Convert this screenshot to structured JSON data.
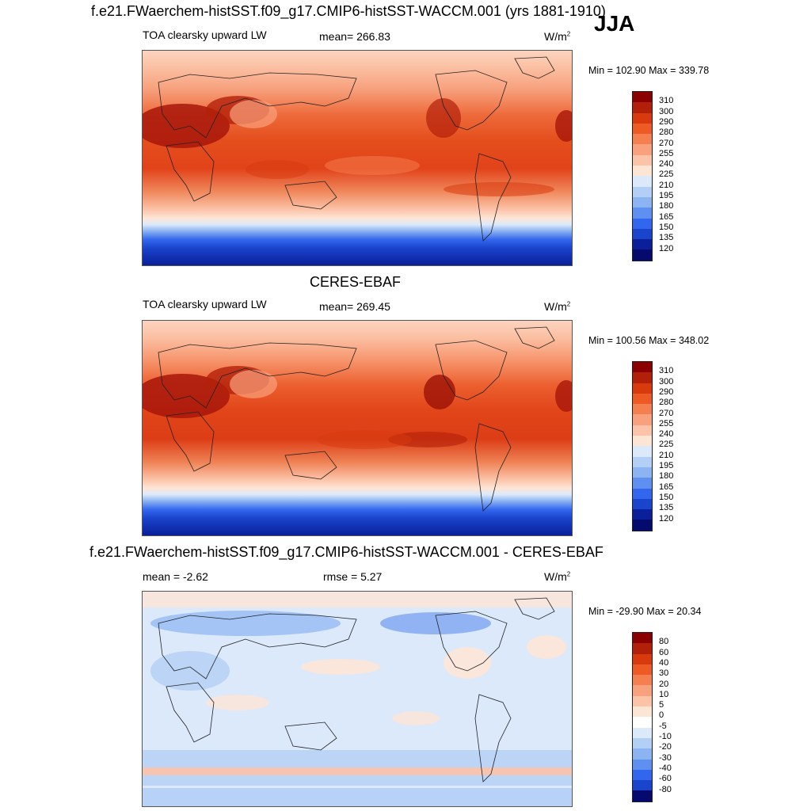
{
  "season": "JJA",
  "panels": [
    {
      "title": "f.e21.FWaerchem-histSST.f09_g17.CMIP6-histSST-WACCM.001 (yrs 1881-1910)",
      "left": "TOA clearsky upward LW",
      "center": "mean= 266.83",
      "units": "W/m",
      "units_sup": "2",
      "minmax": "Min = 102.90 Max = 339.78",
      "levels": [
        "310",
        "300",
        "290",
        "280",
        "270",
        "255",
        "240",
        "225",
        "210",
        "195",
        "180",
        "165",
        "150",
        "135",
        "120"
      ],
      "colors": [
        "#8b0000",
        "#b3200a",
        "#d83a0e",
        "#ee5a24",
        "#f57f4f",
        "#f9a07c",
        "#fcc3a8",
        "#fde5d6",
        "#dbe9fb",
        "#b4cff6",
        "#8cb3f2",
        "#5f8ff0",
        "#3366ee",
        "#1a44cc",
        "#0a1f99",
        "#050a6e"
      ]
    },
    {
      "title": "CERES-EBAF",
      "left": "TOA clearsky upward LW",
      "center": "mean= 269.45",
      "units": "W/m",
      "units_sup": "2",
      "minmax": "Min = 100.56 Max = 348.02",
      "levels": [
        "310",
        "300",
        "290",
        "280",
        "270",
        "255",
        "240",
        "225",
        "210",
        "195",
        "180",
        "165",
        "150",
        "135",
        "120"
      ],
      "colors": [
        "#8b0000",
        "#b3200a",
        "#d83a0e",
        "#ee5a24",
        "#f57f4f",
        "#f9a07c",
        "#fcc3a8",
        "#fde5d6",
        "#dbe9fb",
        "#b4cff6",
        "#8cb3f2",
        "#5f8ff0",
        "#3366ee",
        "#1a44cc",
        "#0a1f99",
        "#050a6e"
      ]
    },
    {
      "title": "f.e21.FWaerchem-histSST.f09_g17.CMIP6-histSST-WACCM.001 - CERES-EBAF",
      "left": "mean =  -2.62",
      "center": "rmse =   5.27",
      "units": "W/m",
      "units_sup": "2",
      "minmax": "Min = -29.90 Max =  20.34",
      "levels": [
        "80",
        "60",
        "40",
        "30",
        "20",
        "10",
        "5",
        "0",
        "-5",
        "-10",
        "-20",
        "-30",
        "-40",
        "-60",
        "-80"
      ],
      "colors": [
        "#8b0000",
        "#b3200a",
        "#d83a0e",
        "#ee5a24",
        "#f57f4f",
        "#f9a07c",
        "#fcc3a8",
        "#fde5d6",
        "#ffffff",
        "#dbe9fb",
        "#b4cff6",
        "#8cb3f2",
        "#5f8ff0",
        "#3366ee",
        "#1a44cc",
        "#050a6e"
      ]
    }
  ],
  "chart_data": [
    {
      "type": "heatmap",
      "title": "f.e21.FWaerchem-histSST.f09_g17.CMIP6-histSST-WACCM.001 (yrs 1881-1910)",
      "variable": "TOA clearsky upward LW",
      "units": "W/m2",
      "mean": 266.83,
      "min": 102.9,
      "max": 339.78,
      "contour_levels": [
        120,
        135,
        150,
        165,
        180,
        195,
        210,
        225,
        240,
        255,
        270,
        280,
        290,
        300,
        310
      ]
    },
    {
      "type": "heatmap",
      "title": "CERES-EBAF",
      "variable": "TOA clearsky upward LW",
      "units": "W/m2",
      "mean": 269.45,
      "min": 100.56,
      "max": 348.02,
      "contour_levels": [
        120,
        135,
        150,
        165,
        180,
        195,
        210,
        225,
        240,
        255,
        270,
        280,
        290,
        300,
        310
      ]
    },
    {
      "type": "heatmap",
      "title": "f.e21.FWaerchem-histSST.f09_g17.CMIP6-histSST-WACCM.001 - CERES-EBAF",
      "units": "W/m2",
      "mean": -2.62,
      "rmse": 5.27,
      "min": -29.9,
      "max": 20.34,
      "contour_levels": [
        -80,
        -60,
        -40,
        -30,
        -20,
        -10,
        -5,
        0,
        5,
        10,
        20,
        30,
        40,
        60,
        80
      ]
    }
  ]
}
